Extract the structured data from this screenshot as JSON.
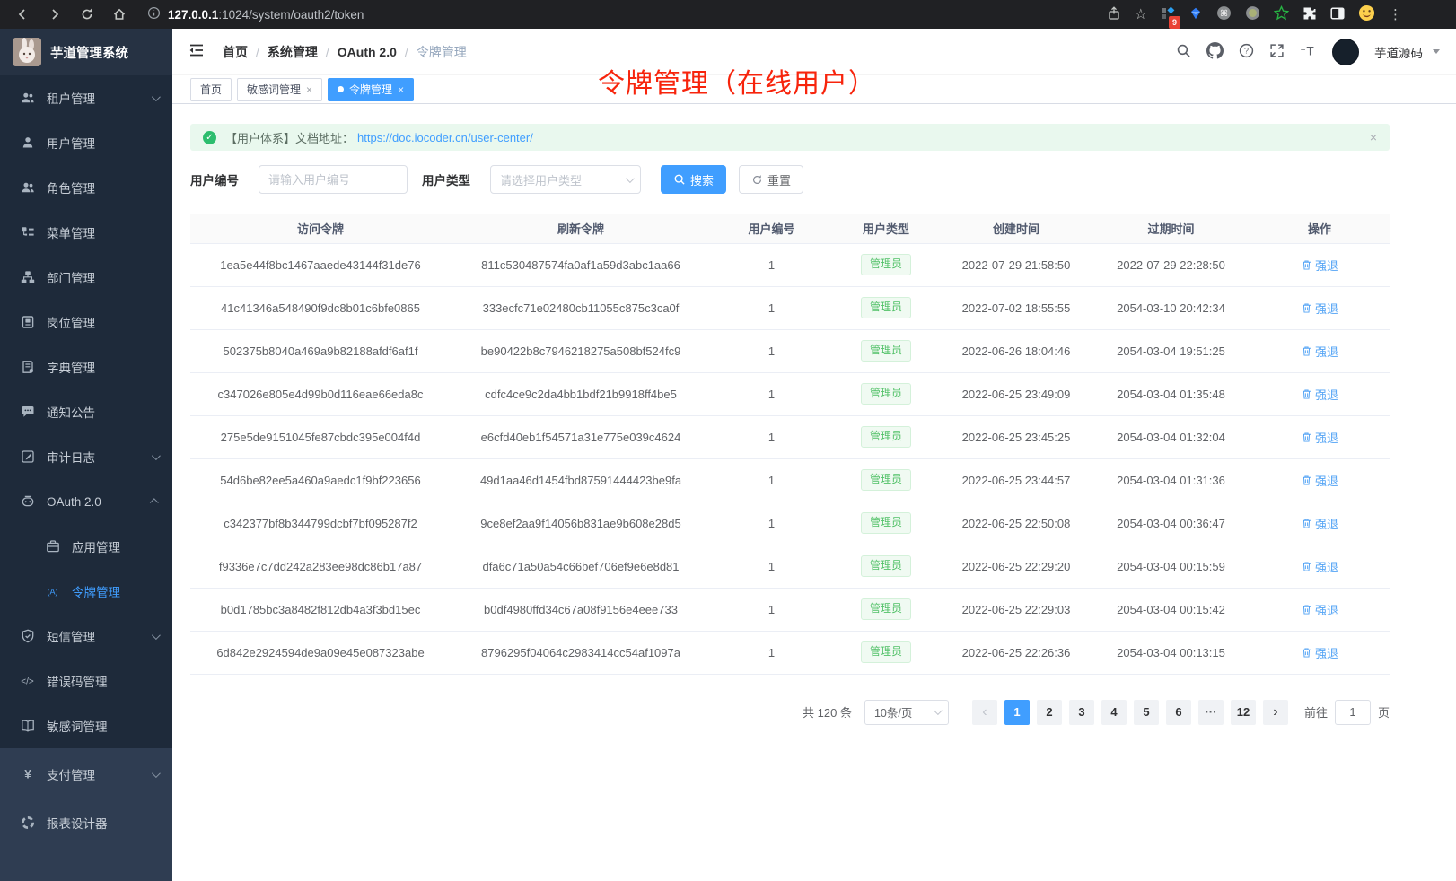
{
  "browser": {
    "url_host": "127.0.0.1",
    "url_path": ":1024/system/oauth2/token",
    "extension_badge": "9"
  },
  "app_title": "芋道管理系统",
  "sidebar": {
    "items": [
      {
        "icon": "tenant",
        "label": "租户管理",
        "chevron": "down"
      },
      {
        "icon": "user",
        "label": "用户管理"
      },
      {
        "icon": "role",
        "label": "角色管理"
      },
      {
        "icon": "menu",
        "label": "菜单管理"
      },
      {
        "icon": "dept",
        "label": "部门管理"
      },
      {
        "icon": "post",
        "label": "岗位管理"
      },
      {
        "icon": "dict",
        "label": "字典管理"
      },
      {
        "icon": "notice",
        "label": "通知公告"
      },
      {
        "icon": "audit",
        "label": "审计日志",
        "chevron": "down"
      },
      {
        "icon": "oauth",
        "label": "OAuth 2.0",
        "chevron": "up"
      },
      {
        "icon": "app",
        "label": "应用管理",
        "child": true
      },
      {
        "icon": "token",
        "label": "令牌管理",
        "child": true,
        "active": true
      },
      {
        "icon": "sms",
        "label": "短信管理",
        "chevron": "down"
      },
      {
        "icon": "errcode",
        "label": "错误码管理"
      },
      {
        "icon": "sensitive",
        "label": "敏感词管理"
      },
      {
        "icon": "pay",
        "label": "支付管理",
        "chevron": "down",
        "section": "bottom"
      },
      {
        "icon": "report",
        "label": "报表设计器",
        "section": "bottom"
      }
    ]
  },
  "header": {
    "breadcrumb": [
      "首页",
      "系统管理",
      "OAuth 2.0",
      "令牌管理"
    ],
    "user_name": "芋道源码"
  },
  "tabs": [
    {
      "label": "首页",
      "closable": false,
      "active": false
    },
    {
      "label": "敏感词管理",
      "closable": true,
      "active": false
    },
    {
      "label": "令牌管理",
      "closable": true,
      "active": true
    }
  ],
  "annotation": "令牌管理（在线用户）",
  "alert": {
    "prefix": "【用户体系】文档地址：",
    "link": "https://doc.iocoder.cn/user-center/"
  },
  "filters": {
    "user_id_label": "用户编号",
    "user_id_placeholder": "请输入用户编号",
    "user_type_label": "用户类型",
    "user_type_placeholder": "请选择用户类型",
    "search_label": "搜索",
    "reset_label": "重置"
  },
  "table": {
    "headers": [
      "访问令牌",
      "刷新令牌",
      "用户编号",
      "用户类型",
      "创建时间",
      "过期时间",
      "操作"
    ],
    "action_label": "强退",
    "rows": [
      {
        "access_token": "1ea5e44f8bc1467aaede43144f31de76",
        "refresh_token": "811c530487574fa0af1a59d3abc1aa66",
        "user_id": "1",
        "user_type": "管理员",
        "create_time": "2022-07-29 21:58:50",
        "expire_time": "2022-07-29 22:28:50"
      },
      {
        "access_token": "41c41346a548490f9dc8b01c6bfe0865",
        "refresh_token": "333ecfc71e02480cb11055c875c3ca0f",
        "user_id": "1",
        "user_type": "管理员",
        "create_time": "2022-07-02 18:55:55",
        "expire_time": "2054-03-10 20:42:34"
      },
      {
        "access_token": "502375b8040a469a9b82188afdf6af1f",
        "refresh_token": "be90422b8c7946218275a508bf524fc9",
        "user_id": "1",
        "user_type": "管理员",
        "create_time": "2022-06-26 18:04:46",
        "expire_time": "2054-03-04 19:51:25"
      },
      {
        "access_token": "c347026e805e4d99b0d116eae66eda8c",
        "refresh_token": "cdfc4ce9c2da4bb1bdf21b9918ff4be5",
        "user_id": "1",
        "user_type": "管理员",
        "create_time": "2022-06-25 23:49:09",
        "expire_time": "2054-03-04 01:35:48"
      },
      {
        "access_token": "275e5de9151045fe87cbdc395e004f4d",
        "refresh_token": "e6cfd40eb1f54571a31e775e039c4624",
        "user_id": "1",
        "user_type": "管理员",
        "create_time": "2022-06-25 23:45:25",
        "expire_time": "2054-03-04 01:32:04"
      },
      {
        "access_token": "54d6be82ee5a460a9aedc1f9bf223656",
        "refresh_token": "49d1aa46d1454fbd87591444423be9fa",
        "user_id": "1",
        "user_type": "管理员",
        "create_time": "2022-06-25 23:44:57",
        "expire_time": "2054-03-04 01:31:36"
      },
      {
        "access_token": "c342377bf8b344799dcbf7bf095287f2",
        "refresh_token": "9ce8ef2aa9f14056b831ae9b608e28d5",
        "user_id": "1",
        "user_type": "管理员",
        "create_time": "2022-06-25 22:50:08",
        "expire_time": "2054-03-04 00:36:47"
      },
      {
        "access_token": "f9336e7c7dd242a283ee98dc86b17a87",
        "refresh_token": "dfa6c71a50a54c66bef706ef9e6e8d81",
        "user_id": "1",
        "user_type": "管理员",
        "create_time": "2022-06-25 22:29:20",
        "expire_time": "2054-03-04 00:15:59"
      },
      {
        "access_token": "b0d1785bc3a8482f812db4a3f3bd15ec",
        "refresh_token": "b0df4980ffd34c67a08f9156e4eee733",
        "user_id": "1",
        "user_type": "管理员",
        "create_time": "2022-06-25 22:29:03",
        "expire_time": "2054-03-04 00:15:42"
      },
      {
        "access_token": "6d842e2924594de9a09e45e087323abe",
        "refresh_token": "8796295f04064c2983414cc54af1097a",
        "user_id": "1",
        "user_type": "管理员",
        "create_time": "2022-06-25 22:26:36",
        "expire_time": "2054-03-04 00:13:15"
      }
    ]
  },
  "pagination": {
    "total": "共 120 条",
    "page_size": "10条/页",
    "pages": [
      "1",
      "2",
      "3",
      "4",
      "5",
      "6",
      "···",
      "12"
    ],
    "active_page": "1",
    "prev": "‹",
    "next": "›",
    "goto_label": "前往",
    "goto_value": "1",
    "goto_suffix": "页"
  },
  "colors": {
    "primary": "#409eff",
    "success": "#52c168",
    "annotation_red": "#f7240c"
  }
}
